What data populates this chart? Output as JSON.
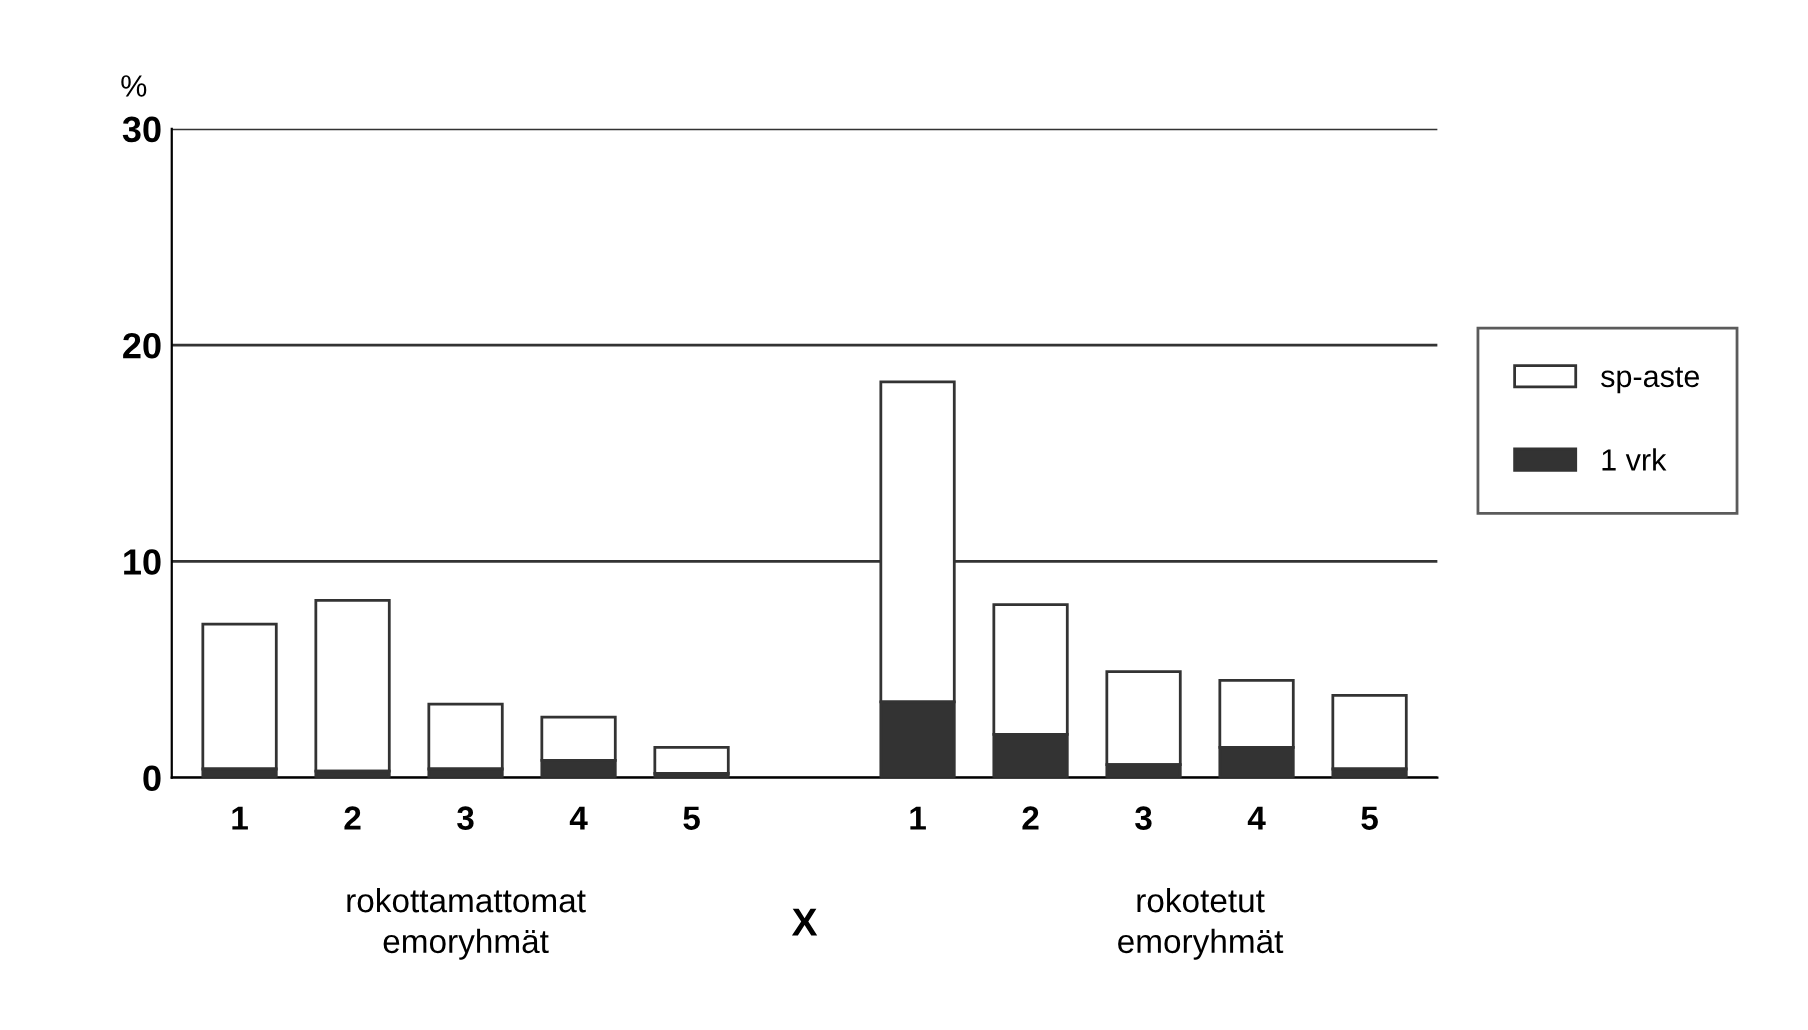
{
  "chart_data": {
    "type": "bar",
    "stacked": true,
    "ylabel": "%",
    "categories": [
      "1",
      "2",
      "3",
      "4",
      "5",
      null,
      "1",
      "2",
      "3",
      "4",
      "5"
    ],
    "series": [
      {
        "name": "1 vrk",
        "color": "#333333",
        "values": [
          0.4,
          0.3,
          0.4,
          0.8,
          0.2,
          null,
          3.5,
          2.0,
          0.6,
          1.4,
          0.4
        ]
      },
      {
        "name": "sp-aste",
        "color": "#ffffff",
        "values": [
          6.7,
          7.9,
          3.0,
          2.0,
          1.2,
          null,
          14.8,
          6.0,
          4.3,
          3.1,
          3.4
        ]
      }
    ],
    "ylim": [
      0,
      30
    ],
    "yticks": [
      0,
      10,
      20,
      30
    ],
    "grid": "y",
    "legend": "right",
    "annotations": [
      "rokottamattomat\nemoryhmät",
      "X",
      "rokotetut\nemoryhmät"
    ]
  }
}
